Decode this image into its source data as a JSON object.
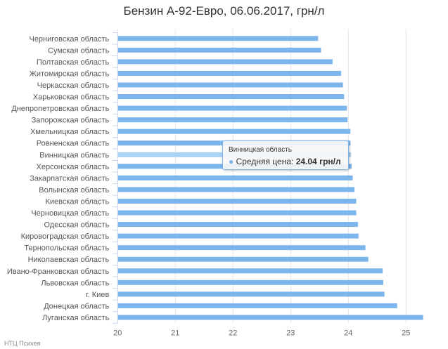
{
  "chart_data": {
    "type": "bar",
    "orientation": "horizontal",
    "title": "Бензин А-92-Евро, 06.06.2017, грн/л",
    "categories": [
      "Черниговская область",
      "Сумская область",
      "Полтавская область",
      "Житомирская область",
      "Черкасская область",
      "Харьковская область",
      "Днепропетровская область",
      "Запорожская область",
      "Хмельницкая область",
      "Ровненская область",
      "Винницкая область",
      "Херсонская область",
      "Закарпатская область",
      "Волынская область",
      "Киевская область",
      "Черновицкая область",
      "Одесская область",
      "Кировоградская область",
      "Тернопольская область",
      "Николаевская область",
      "Ивано-Франковская область",
      "Львовская область",
      "г. Киев",
      "Донецкая область",
      "Луганская область"
    ],
    "series": [
      {
        "name": "Средняя цена",
        "values": [
          23.47,
          23.52,
          23.72,
          23.87,
          23.9,
          23.92,
          23.97,
          23.98,
          24.03,
          24.03,
          24.04,
          24.05,
          24.07,
          24.1,
          24.13,
          24.13,
          24.16,
          24.17,
          24.29,
          24.34,
          24.59,
          24.6,
          24.62,
          24.84,
          25.29
        ]
      }
    ],
    "xlim": [
      20,
      25.5
    ],
    "xticks": [
      20,
      21,
      22,
      23,
      24,
      25
    ],
    "xlabel": "",
    "ylabel": "",
    "grid": true,
    "legend": "none",
    "colors": {
      "bar": "#7cb5ec",
      "bar_hover": "#a9d2f7",
      "grid": "#e6e6e6"
    }
  },
  "tooltip": {
    "category": "Винницкая область",
    "series": "Средняя цена:",
    "value": "24.04 грн/л"
  },
  "credit": "НТЦ Психея"
}
